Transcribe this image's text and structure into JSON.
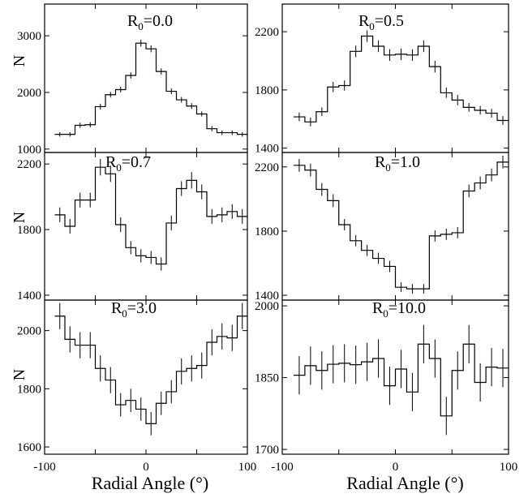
{
  "chart_data": [
    {
      "type": "line",
      "title": "R0=0.0",
      "title_parts": {
        "base": "R",
        "sub": "0",
        "rest": "=0.0"
      },
      "ylabel": "N",
      "xlabel": "",
      "ylim": [
        940,
        3560
      ],
      "yticks": [
        1000,
        2000,
        3000
      ],
      "xlim": [
        -100,
        100
      ],
      "points": [
        {
          "x": -85,
          "y": 1260,
          "err": 40
        },
        {
          "x": -75,
          "y": 1260,
          "err": 40
        },
        {
          "x": -65,
          "y": 1420,
          "err": 45
        },
        {
          "x": -55,
          "y": 1430,
          "err": 45
        },
        {
          "x": -45,
          "y": 1750,
          "err": 50
        },
        {
          "x": -35,
          "y": 1960,
          "err": 50
        },
        {
          "x": -25,
          "y": 2050,
          "err": 50
        },
        {
          "x": -15,
          "y": 2300,
          "err": 55
        },
        {
          "x": -5,
          "y": 2870,
          "err": 60
        },
        {
          "x": 5,
          "y": 2770,
          "err": 60
        },
        {
          "x": 15,
          "y": 2370,
          "err": 55
        },
        {
          "x": 25,
          "y": 2020,
          "err": 50
        },
        {
          "x": 35,
          "y": 1870,
          "err": 50
        },
        {
          "x": 45,
          "y": 1760,
          "err": 50
        },
        {
          "x": 55,
          "y": 1620,
          "err": 45
        },
        {
          "x": 65,
          "y": 1360,
          "err": 45
        },
        {
          "x": 75,
          "y": 1290,
          "err": 40
        },
        {
          "x": 85,
          "y": 1290,
          "err": 40
        },
        {
          "x": 95,
          "y": 1260,
          "err": 40
        }
      ]
    },
    {
      "type": "line",
      "title": "R0=0.5",
      "title_parts": {
        "base": "R",
        "sub": "0",
        "rest": "=0.5"
      },
      "ylabel": "",
      "xlabel": "",
      "ylim": [
        1370,
        2390
      ],
      "yticks": [
        1400,
        1800,
        2200
      ],
      "xlim": [
        -100,
        100
      ],
      "points": [
        {
          "x": -85,
          "y": 1615,
          "err": 30
        },
        {
          "x": -75,
          "y": 1580,
          "err": 30
        },
        {
          "x": -65,
          "y": 1650,
          "err": 30
        },
        {
          "x": -55,
          "y": 1820,
          "err": 35
        },
        {
          "x": -45,
          "y": 1830,
          "err": 35
        },
        {
          "x": -35,
          "y": 2065,
          "err": 40
        },
        {
          "x": -25,
          "y": 2170,
          "err": 40
        },
        {
          "x": -15,
          "y": 2100,
          "err": 40
        },
        {
          "x": -5,
          "y": 2040,
          "err": 40
        },
        {
          "x": 5,
          "y": 2045,
          "err": 40
        },
        {
          "x": 15,
          "y": 2040,
          "err": 40
        },
        {
          "x": 25,
          "y": 2100,
          "err": 40
        },
        {
          "x": 35,
          "y": 1960,
          "err": 40
        },
        {
          "x": 45,
          "y": 1780,
          "err": 35
        },
        {
          "x": 55,
          "y": 1730,
          "err": 35
        },
        {
          "x": 65,
          "y": 1680,
          "err": 30
        },
        {
          "x": 75,
          "y": 1660,
          "err": 30
        },
        {
          "x": 85,
          "y": 1640,
          "err": 30
        },
        {
          "x": 95,
          "y": 1590,
          "err": 30
        }
      ]
    },
    {
      "type": "line",
      "title": "R0=0.7",
      "title_parts": {
        "base": "R",
        "sub": "0",
        "rest": "=0.7"
      },
      "ylabel": "N",
      "xlabel": "",
      "ylim": [
        1370,
        2270
      ],
      "yticks": [
        1400,
        1800,
        2200
      ],
      "xlim": [
        -100,
        100
      ],
      "points": [
        {
          "x": -85,
          "y": 1890,
          "err": 45
        },
        {
          "x": -75,
          "y": 1820,
          "err": 45
        },
        {
          "x": -65,
          "y": 1980,
          "err": 45
        },
        {
          "x": -55,
          "y": 1980,
          "err": 45
        },
        {
          "x": -45,
          "y": 2180,
          "err": 50
        },
        {
          "x": -35,
          "y": 2140,
          "err": 50
        },
        {
          "x": -25,
          "y": 1830,
          "err": 45
        },
        {
          "x": -15,
          "y": 1690,
          "err": 40
        },
        {
          "x": -5,
          "y": 1640,
          "err": 40
        },
        {
          "x": 5,
          "y": 1630,
          "err": 40
        },
        {
          "x": 15,
          "y": 1590,
          "err": 40
        },
        {
          "x": 25,
          "y": 1840,
          "err": 45
        },
        {
          "x": 35,
          "y": 2050,
          "err": 45
        },
        {
          "x": 45,
          "y": 2100,
          "err": 50
        },
        {
          "x": 55,
          "y": 2030,
          "err": 45
        },
        {
          "x": 65,
          "y": 1880,
          "err": 45
        },
        {
          "x": 75,
          "y": 1890,
          "err": 45
        },
        {
          "x": 85,
          "y": 1910,
          "err": 45
        },
        {
          "x": 95,
          "y": 1880,
          "err": 45
        }
      ]
    },
    {
      "type": "line",
      "title": "R0=1.0",
      "title_parts": {
        "base": "R",
        "sub": "0",
        "rest": "=1.0"
      },
      "ylabel": "",
      "xlabel": "",
      "ylim": [
        1370,
        2290
      ],
      "yticks": [
        1400,
        1800,
        2200
      ],
      "xlim": [
        -100,
        100
      ],
      "points": [
        {
          "x": -85,
          "y": 2210,
          "err": 40
        },
        {
          "x": -75,
          "y": 2180,
          "err": 40
        },
        {
          "x": -65,
          "y": 2060,
          "err": 40
        },
        {
          "x": -55,
          "y": 1990,
          "err": 40
        },
        {
          "x": -45,
          "y": 1840,
          "err": 35
        },
        {
          "x": -35,
          "y": 1740,
          "err": 35
        },
        {
          "x": -25,
          "y": 1680,
          "err": 35
        },
        {
          "x": -15,
          "y": 1630,
          "err": 35
        },
        {
          "x": -5,
          "y": 1580,
          "err": 35
        },
        {
          "x": 5,
          "y": 1450,
          "err": 30
        },
        {
          "x": 15,
          "y": 1440,
          "err": 30
        },
        {
          "x": 25,
          "y": 1440,
          "err": 30
        },
        {
          "x": 35,
          "y": 1770,
          "err": 35
        },
        {
          "x": 45,
          "y": 1780,
          "err": 35
        },
        {
          "x": 55,
          "y": 1790,
          "err": 35
        },
        {
          "x": 65,
          "y": 2050,
          "err": 40
        },
        {
          "x": 75,
          "y": 2100,
          "err": 40
        },
        {
          "x": 85,
          "y": 2150,
          "err": 40
        },
        {
          "x": 95,
          "y": 2230,
          "err": 40
        }
      ]
    },
    {
      "type": "line",
      "title": "R0=3.0",
      "title_parts": {
        "base": "R",
        "sub": "0",
        "rest": "=3.0"
      },
      "ylabel": "N",
      "xlabel": "Radial Angle (°)",
      "ylim": [
        1575,
        2105
      ],
      "yticks": [
        1600,
        1800,
        2000
      ],
      "xlim": [
        -100,
        100
      ],
      "xticks": [
        -100,
        0,
        100
      ],
      "points": [
        {
          "x": -85,
          "y": 2050,
          "err": 45
        },
        {
          "x": -75,
          "y": 1970,
          "err": 45
        },
        {
          "x": -65,
          "y": 1950,
          "err": 45
        },
        {
          "x": -55,
          "y": 1950,
          "err": 45
        },
        {
          "x": -45,
          "y": 1870,
          "err": 45
        },
        {
          "x": -35,
          "y": 1830,
          "err": 45
        },
        {
          "x": -25,
          "y": 1745,
          "err": 40
        },
        {
          "x": -15,
          "y": 1760,
          "err": 40
        },
        {
          "x": -5,
          "y": 1730,
          "err": 40
        },
        {
          "x": 5,
          "y": 1680,
          "err": 40
        },
        {
          "x": 15,
          "y": 1750,
          "err": 40
        },
        {
          "x": 25,
          "y": 1790,
          "err": 40
        },
        {
          "x": 35,
          "y": 1860,
          "err": 45
        },
        {
          "x": 45,
          "y": 1870,
          "err": 45
        },
        {
          "x": 55,
          "y": 1880,
          "err": 45
        },
        {
          "x": 65,
          "y": 1960,
          "err": 45
        },
        {
          "x": 75,
          "y": 1980,
          "err": 45
        },
        {
          "x": 85,
          "y": 1975,
          "err": 45
        },
        {
          "x": 95,
          "y": 2050,
          "err": 45
        }
      ]
    },
    {
      "type": "line",
      "title": "R0=10.0",
      "title_parts": {
        "base": "R",
        "sub": "0",
        "rest": "=10.0"
      },
      "ylabel": "",
      "xlabel": "Radial Angle (°)",
      "ylim": [
        1690,
        2012
      ],
      "yticks": [
        1700,
        1850,
        2000
      ],
      "xlim": [
        -100,
        100
      ],
      "xticks": [
        -100,
        0,
        100
      ],
      "points": [
        {
          "x": -85,
          "y": 1855,
          "err": 40
        },
        {
          "x": -75,
          "y": 1875,
          "err": 40
        },
        {
          "x": -65,
          "y": 1865,
          "err": 40
        },
        {
          "x": -55,
          "y": 1878,
          "err": 40
        },
        {
          "x": -45,
          "y": 1880,
          "err": 40
        },
        {
          "x": -35,
          "y": 1877,
          "err": 40
        },
        {
          "x": -25,
          "y": 1883,
          "err": 40
        },
        {
          "x": -15,
          "y": 1890,
          "err": 40
        },
        {
          "x": -5,
          "y": 1833,
          "err": 40
        },
        {
          "x": 5,
          "y": 1868,
          "err": 40
        },
        {
          "x": 15,
          "y": 1820,
          "err": 40
        },
        {
          "x": 25,
          "y": 1920,
          "err": 40
        },
        {
          "x": 35,
          "y": 1890,
          "err": 40
        },
        {
          "x": 45,
          "y": 1770,
          "err": 40
        },
        {
          "x": 55,
          "y": 1865,
          "err": 40
        },
        {
          "x": 65,
          "y": 1920,
          "err": 40
        },
        {
          "x": 75,
          "y": 1840,
          "err": 40
        },
        {
          "x": 85,
          "y": 1872,
          "err": 40
        },
        {
          "x": 95,
          "y": 1870,
          "err": 40
        }
      ]
    }
  ]
}
